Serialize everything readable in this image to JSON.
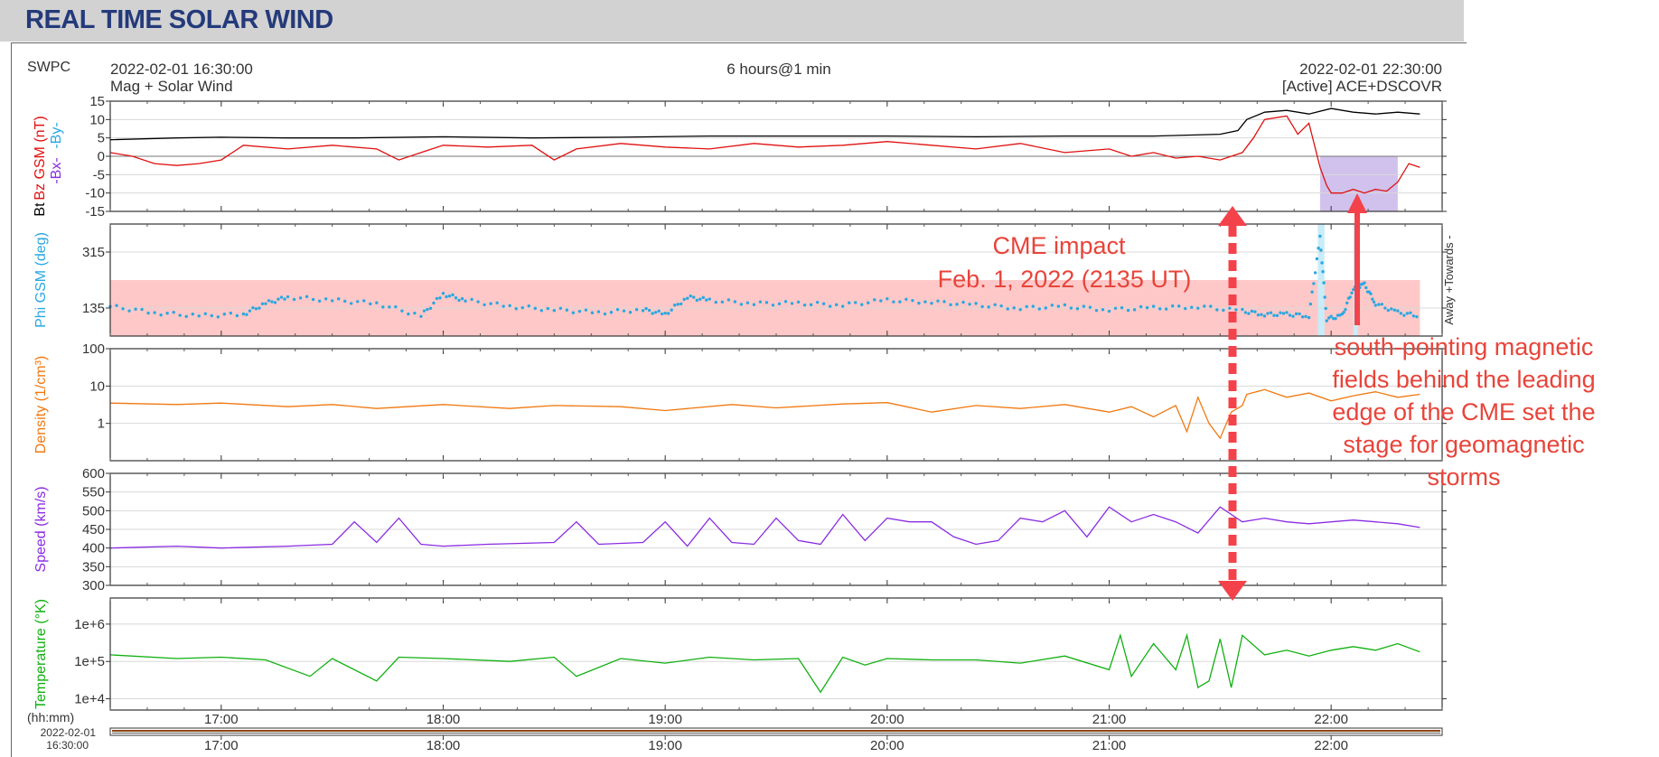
{
  "header": {
    "title": "REAL TIME SOLAR WIND"
  },
  "top": {
    "source": "SWPC",
    "start_time": "2022-02-01 16:30:00",
    "product": "Mag + Solar Wind",
    "span": "6 hours@1 min",
    "end_time": "2022-02-01 22:30:00",
    "satellite": "[Active] ACE+DSCOVR"
  },
  "bottom": {
    "unit_label": "(hh:mm)",
    "start_date": "2022-02-01",
    "start_clock": "16:30:00"
  },
  "annotations": {
    "cme_line1": "CME impact",
    "cme_line2": "Feb. 1, 2022 (2135 UT)",
    "south_text": [
      "south-pointing magnetic",
      "fields behind the leading",
      "edge of the CME set the",
      "stage for geomagnetic",
      "storms"
    ]
  },
  "chart_data": {
    "type": "line",
    "x_unit": "hour UT",
    "x_range": [
      16.5,
      22.5
    ],
    "x_ticks": [
      17,
      18,
      19,
      20,
      21,
      22
    ],
    "x_tick_labels": [
      "17:00",
      "18:00",
      "19:00",
      "20:00",
      "21:00",
      "22:00"
    ],
    "colors": {
      "bz": "#e01010",
      "bt": "#000000",
      "phi": "#29a8e0",
      "density": "#f07810",
      "speed": "#8a2be2",
      "temperature": "#10b010",
      "highlight": "#c9b6ea",
      "phi_band": "#ffc8c8"
    },
    "panels": [
      {
        "id": "mag",
        "ylabel_parts": [
          "Bz GSM (nT)",
          "Bt",
          "-Bx-",
          "-By-"
        ],
        "ylim": [
          -15,
          15
        ],
        "yticks": [
          15,
          10,
          5,
          0,
          -5,
          -10,
          -15
        ],
        "highlight_x": [
          21.95,
          22.3
        ],
        "highlight_y": [
          -15,
          0
        ],
        "series": [
          {
            "name": "Bt",
            "x": [
              16.5,
              16.8,
              17.0,
              17.3,
              17.6,
              18.0,
              18.4,
              18.8,
              19.2,
              19.6,
              20.0,
              20.4,
              20.8,
              21.2,
              21.5,
              21.58,
              21.62,
              21.7,
              21.8,
              21.9,
              22.0,
              22.1,
              22.2,
              22.3,
              22.4
            ],
            "y": [
              4.5,
              5,
              5.2,
              5,
              5,
              5.3,
              5,
              5.2,
              5.5,
              5.5,
              5.5,
              5.3,
              5.5,
              5.5,
              6,
              7,
              10,
              12,
              12.5,
              11.5,
              13,
              12,
              11.5,
              12,
              11.5
            ]
          },
          {
            "name": "Bz GSM",
            "x": [
              16.5,
              16.6,
              16.7,
              16.8,
              16.9,
              17.0,
              17.1,
              17.3,
              17.5,
              17.7,
              17.8,
              17.9,
              18.0,
              18.2,
              18.4,
              18.5,
              18.6,
              18.8,
              19.0,
              19.2,
              19.4,
              19.6,
              19.8,
              20.0,
              20.2,
              20.4,
              20.6,
              20.8,
              21.0,
              21.1,
              21.2,
              21.3,
              21.4,
              21.5,
              21.6,
              21.65,
              21.7,
              21.8,
              21.85,
              21.9,
              21.95,
              21.98,
              22.0,
              22.05,
              22.1,
              22.15,
              22.2,
              22.25,
              22.3,
              22.35,
              22.4
            ],
            "y": [
              1,
              0,
              -2,
              -2.5,
              -2,
              -1,
              3,
              2,
              3,
              2,
              -1,
              1,
              3,
              2.5,
              3,
              -1,
              2,
              3.5,
              2.5,
              2,
              3.5,
              2.5,
              3,
              4,
              3,
              2,
              3.5,
              1,
              2,
              0,
              1,
              -0.5,
              0,
              -1,
              1,
              5,
              10,
              11,
              6,
              9,
              -3,
              -8,
              -10,
              -10,
              -9,
              -10,
              -9,
              -9.5,
              -7,
              -2,
              -3
            ]
          }
        ]
      },
      {
        "id": "phi",
        "ylabel": "Phi GSM (deg)",
        "ylim": [
          45,
          405
        ],
        "yticks": [
          315,
          135
        ],
        "band_y": [
          45,
          225
        ],
        "right_label": "Away +Towards -",
        "gap_x": [
          21.94,
          21.97,
          22.1,
          22.12
        ],
        "series": [
          {
            "name": "Phi GSM",
            "x": [
              16.5,
              16.7,
              16.9,
              17.1,
              17.2,
              17.3,
              17.5,
              17.7,
              17.9,
              18.0,
              18.1,
              18.3,
              18.5,
              18.7,
              18.9,
              19.0,
              19.1,
              19.2,
              19.4,
              19.6,
              19.8,
              20.0,
              20.2,
              20.4,
              20.6,
              20.8,
              21.0,
              21.2,
              21.4,
              21.6,
              21.7,
              21.8,
              21.9,
              21.95,
              21.98,
              22.05,
              22.1,
              22.15,
              22.2,
              22.3,
              22.4
            ],
            "y": [
              140,
              120,
              110,
              115,
              150,
              170,
              160,
              150,
              110,
              180,
              160,
              140,
              130,
              120,
              130,
              115,
              170,
              160,
              150,
              150,
              145,
              160,
              155,
              145,
              135,
              140,
              130,
              135,
              140,
              125,
              115,
              115,
              110,
              360,
              100,
              110,
              200,
              210,
              150,
              120,
              110
            ]
          }
        ]
      },
      {
        "id": "density",
        "ylabel": "Density (1/cm³)",
        "ylim": [
          0.1,
          100
        ],
        "log": true,
        "yticks": [
          100,
          10,
          1
        ],
        "ytick_labels": [
          "100",
          "10",
          "1"
        ],
        "series": [
          {
            "name": "Density",
            "x": [
              16.5,
              16.8,
              17.0,
              17.3,
              17.5,
              17.7,
              18.0,
              18.3,
              18.5,
              18.8,
              19.0,
              19.3,
              19.5,
              19.8,
              20.0,
              20.2,
              20.4,
              20.6,
              20.8,
              21.0,
              21.1,
              21.2,
              21.3,
              21.35,
              21.4,
              21.45,
              21.5,
              21.55,
              21.6,
              21.62,
              21.7,
              21.8,
              21.9,
              22.0,
              22.1,
              22.2,
              22.3,
              22.4
            ],
            "y": [
              3.5,
              3.2,
              3.5,
              2.8,
              3.2,
              2.5,
              3.2,
              2.5,
              3.0,
              2.8,
              2.2,
              3.2,
              2.6,
              3.3,
              3.6,
              2.0,
              3.0,
              2.5,
              3.2,
              2.0,
              2.8,
              1.5,
              3.0,
              0.6,
              5.0,
              1.0,
              0.4,
              2.0,
              3.0,
              6.0,
              8.0,
              5.0,
              6.5,
              4.0,
              5.5,
              7.0,
              5.0,
              6.0
            ]
          }
        ]
      },
      {
        "id": "speed",
        "ylabel": "Speed (km/s)",
        "ylim": [
          300,
          600
        ],
        "yticks": [
          600,
          550,
          500,
          450,
          400,
          350,
          300
        ],
        "series": [
          {
            "name": "Speed",
            "x": [
              16.5,
              16.8,
              17.0,
              17.3,
              17.5,
              17.6,
              17.7,
              17.8,
              17.9,
              18.0,
              18.2,
              18.5,
              18.6,
              18.7,
              18.9,
              19.0,
              19.1,
              19.2,
              19.3,
              19.4,
              19.5,
              19.6,
              19.7,
              19.8,
              19.9,
              20.0,
              20.1,
              20.2,
              20.3,
              20.4,
              20.5,
              20.6,
              20.7,
              20.8,
              20.9,
              21.0,
              21.1,
              21.2,
              21.3,
              21.4,
              21.5,
              21.6,
              21.7,
              21.8,
              21.9,
              22.0,
              22.1,
              22.2,
              22.3,
              22.4
            ],
            "y": [
              400,
              405,
              400,
              405,
              410,
              470,
              415,
              480,
              410,
              405,
              410,
              415,
              470,
              410,
              415,
              470,
              405,
              480,
              415,
              410,
              480,
              420,
              410,
              490,
              420,
              480,
              470,
              470,
              430,
              410,
              420,
              480,
              470,
              500,
              430,
              510,
              470,
              490,
              470,
              440,
              510,
              470,
              480,
              470,
              465,
              470,
              475,
              470,
              465,
              455
            ]
          }
        ]
      },
      {
        "id": "temperature",
        "ylabel": "Temperature (°K)",
        "ylim": [
          5000,
          5000000
        ],
        "log": true,
        "yticks": [
          1000000,
          100000,
          10000
        ],
        "ytick_labels": [
          "1e+6",
          "1e+5",
          "1e+4"
        ],
        "series": [
          {
            "name": "Temperature",
            "x": [
              16.5,
              16.8,
              17.0,
              17.2,
              17.4,
              17.5,
              17.7,
              17.8,
              18.0,
              18.3,
              18.5,
              18.6,
              18.8,
              19.0,
              19.2,
              19.4,
              19.6,
              19.7,
              19.8,
              19.9,
              20.0,
              20.2,
              20.4,
              20.6,
              20.8,
              21.0,
              21.05,
              21.1,
              21.2,
              21.3,
              21.35,
              21.4,
              21.45,
              21.5,
              21.55,
              21.6,
              21.7,
              21.8,
              21.9,
              22.0,
              22.1,
              22.2,
              22.3,
              22.4
            ],
            "y": [
              150000,
              120000,
              130000,
              110000,
              40000,
              120000,
              30000,
              130000,
              120000,
              100000,
              130000,
              40000,
              120000,
              90000,
              130000,
              110000,
              120000,
              15000,
              130000,
              80000,
              120000,
              110000,
              110000,
              90000,
              140000,
              60000,
              500000,
              40000,
              300000,
              60000,
              500000,
              20000,
              30000,
              400000,
              20000,
              500000,
              150000,
              200000,
              140000,
              200000,
              250000,
              200000,
              300000,
              180000
            ]
          }
        ]
      }
    ]
  }
}
